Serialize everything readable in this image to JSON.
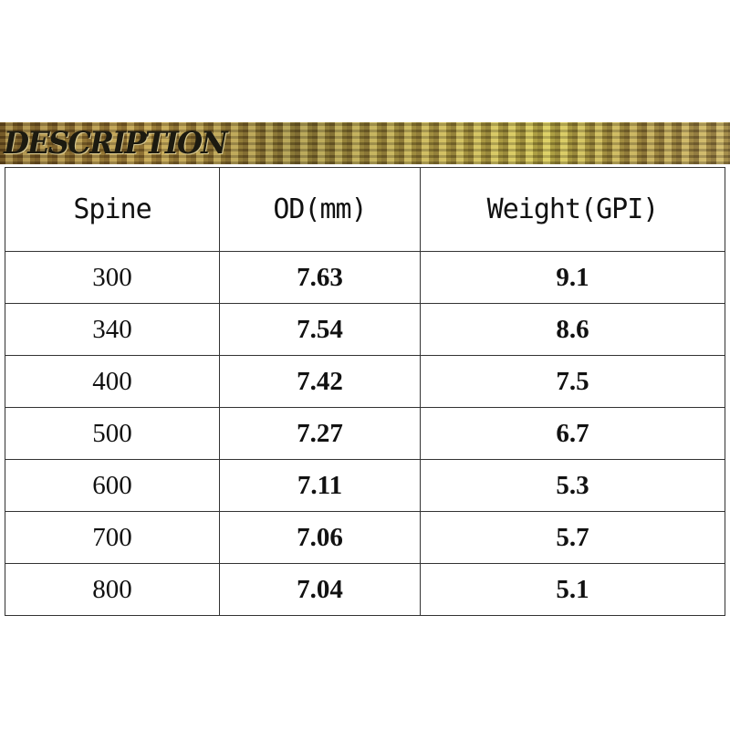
{
  "banner": {
    "title": "DESCRIPTION"
  },
  "table": {
    "headers": [
      "Spine",
      "OD(mm)",
      "Weight(GPI)"
    ],
    "rows": [
      [
        "300",
        "7.63",
        "9.1"
      ],
      [
        "340",
        "7.54",
        "8.6"
      ],
      [
        "400",
        "7.42",
        "7.5"
      ],
      [
        "500",
        "7.27",
        "6.7"
      ],
      [
        "600",
        "7.11",
        "5.3"
      ],
      [
        "700",
        "7.06",
        "5.7"
      ],
      [
        "800",
        "7.04",
        "5.1"
      ]
    ]
  }
}
